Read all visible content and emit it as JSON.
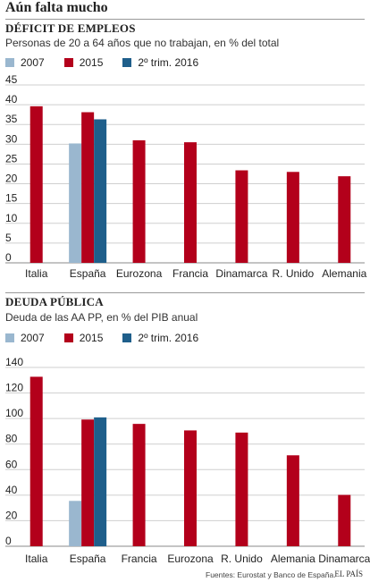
{
  "title": "Aún falta mucho",
  "colors": {
    "2007": "#9ab7cf",
    "2015": "#b3001b",
    "2016": "#1f5f8b",
    "grid": "#cfcfcf"
  },
  "legend": [
    {
      "label": "2007",
      "color_key": "2007"
    },
    {
      "label": "2015",
      "color_key": "2015"
    },
    {
      "label": "2º trim. 2016",
      "color_key": "2016"
    }
  ],
  "chart_data": [
    {
      "type": "bar",
      "title": "DÉFICIT DE EMPLEOS",
      "subtitle": "Personas de 20 a 64 años que no trabajan, en % del total",
      "categories": [
        "Italia",
        "España",
        "Eurozona",
        "Francia",
        "Dinamarca",
        "R. Unido",
        "Alemania"
      ],
      "series": [
        {
          "name": "2007",
          "values": [
            null,
            30.2,
            null,
            null,
            null,
            null,
            null
          ]
        },
        {
          "name": "2015",
          "values": [
            39.6,
            38.1,
            31.0,
            30.5,
            23.4,
            23.0,
            21.9
          ]
        },
        {
          "name": "2º trim. 2016",
          "values": [
            null,
            36.3,
            null,
            null,
            null,
            null,
            null
          ]
        }
      ],
      "ylim": [
        0,
        45
      ],
      "yticks": [
        0,
        5,
        10,
        15,
        20,
        25,
        30,
        35,
        40,
        45
      ],
      "grid": true
    },
    {
      "type": "bar",
      "title": "DEUDA PÚBLICA",
      "subtitle": "Deuda de las AA PP, en % del PIB anual",
      "categories": [
        "Italia",
        "España",
        "Francia",
        "Eurozona",
        "R. Unido",
        "Alemania",
        "Dinamarca"
      ],
      "series": [
        {
          "name": "2007",
          "values": [
            null,
            35.5,
            null,
            null,
            null,
            null,
            null
          ]
        },
        {
          "name": "2015",
          "values": [
            132.7,
            99.2,
            95.8,
            90.7,
            89.0,
            71.2,
            40.2
          ]
        },
        {
          "name": "2º trim. 2016",
          "values": [
            null,
            100.9,
            null,
            null,
            null,
            null,
            null
          ]
        }
      ],
      "ylim": [
        0,
        140
      ],
      "yticks": [
        0,
        20,
        40,
        60,
        80,
        100,
        120,
        140
      ],
      "grid": true
    }
  ],
  "footer": "Fuentes: Eurostat y Banco de España.",
  "brand": "EL PAÍS"
}
